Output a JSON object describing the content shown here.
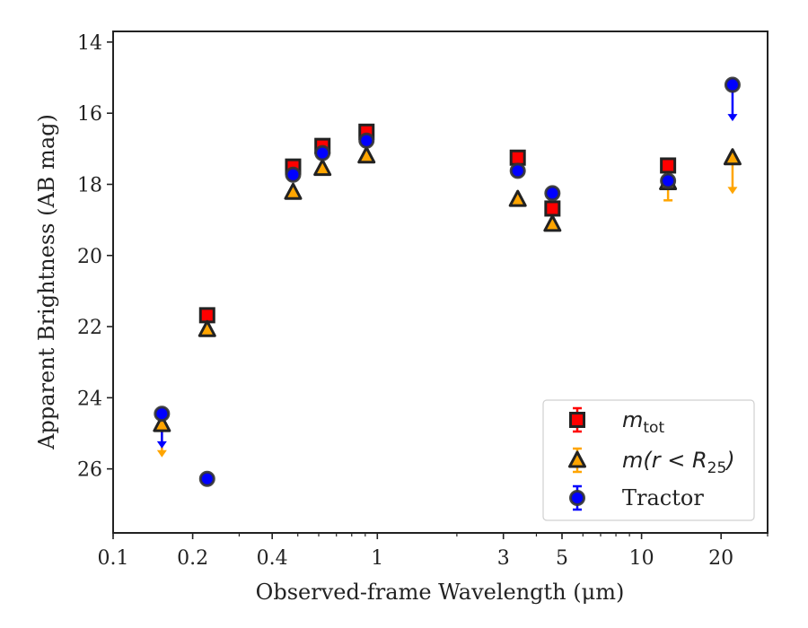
{
  "chart_data": {
    "type": "scatter",
    "xlabel": "Observed-frame Wavelength (μm)",
    "ylabel": "Apparent Brightness (AB mag)",
    "xscale": "log",
    "xlim": [
      0.1,
      30
    ],
    "ylim": [
      27.8,
      13.7
    ],
    "y_inverted": true,
    "xticks": [
      0.1,
      0.2,
      0.4,
      1,
      3,
      5,
      10,
      20
    ],
    "xtick_labels": [
      "0.1",
      "0.2",
      "0.4",
      "1",
      "3",
      "5",
      "10",
      "20"
    ],
    "yticks": [
      14,
      16,
      18,
      20,
      22,
      24,
      26
    ],
    "ytick_labels": [
      "14",
      "16",
      "18",
      "20",
      "22",
      "24",
      "26"
    ],
    "grid": false,
    "legend_position": "bottom-right",
    "series": [
      {
        "name": "m_tot",
        "legend_main": "m",
        "legend_sub": "tot",
        "marker": "square",
        "color": "#ff0000",
        "edge_color": "#222222",
        "points": [
          {
            "x": 0.227,
            "y": 21.68
          },
          {
            "x": 0.48,
            "y": 17.5
          },
          {
            "x": 0.62,
            "y": 16.92
          },
          {
            "x": 0.91,
            "y": 16.52
          },
          {
            "x": 3.4,
            "y": 17.25
          },
          {
            "x": 4.6,
            "y": 18.68
          },
          {
            "x": 12.6,
            "y": 17.47
          }
        ]
      },
      {
        "name": "m(r < R25)",
        "legend_main": "m(r < R",
        "legend_sub": "25",
        "legend_tail": ")",
        "marker": "triangle",
        "color": "#ffa500",
        "edge_color": "#222222",
        "points": [
          {
            "x": 0.153,
            "y": 24.75,
            "upper_limit": true,
            "limit_to": 25.65
          },
          {
            "x": 0.227,
            "y": 22.08
          },
          {
            "x": 0.48,
            "y": 18.22
          },
          {
            "x": 0.62,
            "y": 17.55
          },
          {
            "x": 0.91,
            "y": 17.2
          },
          {
            "x": 3.4,
            "y": 18.42
          },
          {
            "x": 4.6,
            "y": 19.12
          },
          {
            "x": 12.6,
            "y": 17.95,
            "error": 0.5
          },
          {
            "x": 22.1,
            "y": 17.25,
            "upper_limit": true,
            "limit_to": 18.25
          }
        ]
      },
      {
        "name": "Tractor",
        "marker": "circle",
        "color": "#0000ff",
        "edge_color": "#333333",
        "points": [
          {
            "x": 0.153,
            "y": 24.45,
            "upper_limit": true,
            "limit_to": 25.4
          },
          {
            "x": 0.227,
            "y": 26.28
          },
          {
            "x": 0.48,
            "y": 17.73
          },
          {
            "x": 0.62,
            "y": 17.12
          },
          {
            "x": 0.91,
            "y": 16.77
          },
          {
            "x": 3.4,
            "y": 17.62
          },
          {
            "x": 4.6,
            "y": 18.25
          },
          {
            "x": 12.6,
            "y": 17.9
          },
          {
            "x": 22.1,
            "y": 15.2,
            "upper_limit": true,
            "limit_to": 16.2
          }
        ]
      }
    ]
  }
}
